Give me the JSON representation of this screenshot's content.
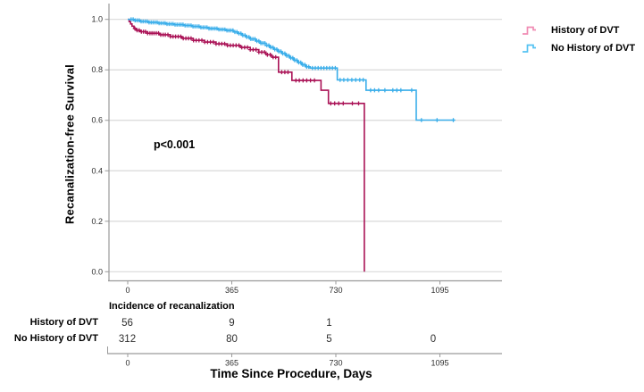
{
  "figure": {
    "ylabel": "Recanalization-free Survival",
    "xlabel": "Time Since Procedure, Days",
    "annotation_text": "p<0.001",
    "legend": {
      "position": "top-right",
      "items": [
        {
          "label": "History of DVT",
          "swatch_color": "#F08CB4",
          "swatch_icon": "step-line-icon"
        },
        {
          "label": "No History of DVT",
          "swatch_color": "#55C2F2",
          "swatch_icon": "step-line-icon"
        }
      ]
    }
  },
  "chart_data": {
    "type": "line",
    "subtype": "kaplan-meier-step",
    "title": "",
    "xlabel": "Time Since Procedure, Days",
    "ylabel": "Recanalization-free Survival",
    "xlim_days": [
      0,
      1315
    ],
    "ylim": [
      0.0,
      1.0
    ],
    "xticks": [
      0,
      365,
      730,
      1095
    ],
    "xtick_labels": [
      "0",
      "365",
      "730",
      "1095"
    ],
    "ytick_values": [
      0.0,
      0.2,
      0.4,
      0.6,
      0.8,
      1.0
    ],
    "ytick_labels": [
      "0.0",
      "0.2",
      "0.4",
      "0.6",
      "0.8",
      "1.0"
    ],
    "grid": "horizontal",
    "annotation": {
      "text": "p<0.001"
    },
    "colors": {
      "gridline": "#d9d9d9",
      "axis": "#9a9a9a",
      "tick_text": "#2e2e2e"
    },
    "series": [
      {
        "name": "History of DVT",
        "color": "#AA1256",
        "steps": [
          [
            0,
            1.0
          ],
          [
            5,
            0.991
          ],
          [
            10,
            0.982
          ],
          [
            15,
            0.973
          ],
          [
            22,
            0.964
          ],
          [
            30,
            0.957
          ],
          [
            45,
            0.951
          ],
          [
            70,
            0.945
          ],
          [
            110,
            0.939
          ],
          [
            150,
            0.932
          ],
          [
            190,
            0.925
          ],
          [
            230,
            0.917
          ],
          [
            270,
            0.91
          ],
          [
            310,
            0.903
          ],
          [
            350,
            0.897
          ],
          [
            395,
            0.889
          ],
          [
            430,
            0.88
          ],
          [
            460,
            0.87
          ],
          [
            485,
            0.86
          ],
          [
            505,
            0.85
          ],
          [
            529,
            0.791
          ],
          [
            576,
            0.758
          ],
          [
            678,
            0.719
          ],
          [
            704,
            0.667
          ],
          [
            830,
            0.0
          ]
        ],
        "censor_days": [
          25,
          33,
          40,
          48,
          55,
          62,
          70,
          78,
          85,
          92,
          100,
          108,
          116,
          124,
          132,
          141,
          150,
          159,
          168,
          177,
          186,
          195,
          204,
          213,
          222,
          231,
          240,
          250,
          260,
          270,
          280,
          290,
          300,
          310,
          320,
          330,
          340,
          350,
          360,
          370,
          380,
          390,
          400,
          410,
          420,
          430,
          440,
          450,
          460,
          470,
          480,
          490,
          500,
          510,
          519,
          540,
          551,
          562,
          590,
          602,
          615,
          628,
          641,
          655,
          712,
          726,
          740,
          756,
          788,
          810
        ]
      },
      {
        "name": "No History of DVT",
        "color": "#3AAEEA",
        "steps": [
          [
            0,
            1.0
          ],
          [
            20,
            0.996
          ],
          [
            45,
            0.992
          ],
          [
            75,
            0.988
          ],
          [
            105,
            0.985
          ],
          [
            135,
            0.982
          ],
          [
            165,
            0.979
          ],
          [
            195,
            0.976
          ],
          [
            225,
            0.972
          ],
          [
            255,
            0.968
          ],
          [
            285,
            0.964
          ],
          [
            315,
            0.96
          ],
          [
            345,
            0.956
          ],
          [
            370,
            0.95
          ],
          [
            385,
            0.944
          ],
          [
            400,
            0.937
          ],
          [
            415,
            0.93
          ],
          [
            430,
            0.922
          ],
          [
            448,
            0.914
          ],
          [
            465,
            0.906
          ],
          [
            482,
            0.897
          ],
          [
            498,
            0.889
          ],
          [
            512,
            0.881
          ],
          [
            526,
            0.873
          ],
          [
            540,
            0.865
          ],
          [
            554,
            0.856
          ],
          [
            568,
            0.847
          ],
          [
            582,
            0.838
          ],
          [
            596,
            0.829
          ],
          [
            610,
            0.82
          ],
          [
            625,
            0.812
          ],
          [
            640,
            0.807
          ],
          [
            735,
            0.76
          ],
          [
            836,
            0.719
          ],
          [
            1012,
            0.601
          ],
          [
            1147,
            0.601
          ]
        ],
        "censor_days": [
          12,
          19,
          26,
          33,
          40,
          47,
          54,
          61,
          68,
          75,
          82,
          89,
          96,
          103,
          110,
          117,
          124,
          131,
          138,
          145,
          152,
          159,
          166,
          173,
          180,
          187,
          194,
          201,
          208,
          215,
          222,
          229,
          236,
          243,
          250,
          257,
          264,
          271,
          278,
          285,
          292,
          299,
          306,
          313,
          320,
          327,
          334,
          341,
          348,
          355,
          362,
          369,
          376,
          383,
          390,
          397,
          404,
          411,
          418,
          425,
          432,
          439,
          446,
          453,
          460,
          467,
          474,
          481,
          488,
          495,
          502,
          509,
          516,
          523,
          530,
          537,
          544,
          551,
          558,
          565,
          572,
          579,
          586,
          593,
          600,
          607,
          614,
          621,
          628,
          635,
          648,
          658,
          668,
          678,
          688,
          698,
          708,
          718,
          728,
          745,
          758,
          772,
          786,
          800,
          814,
          826,
          852,
          866,
          880,
          902,
          930,
          944,
          958,
          996,
          1030,
          1085,
          1142
        ]
      }
    ],
    "risk_table": {
      "title": "Incidence of recanalization",
      "time_points": [
        0,
        365,
        730,
        1095
      ],
      "rows": [
        {
          "label": "History of DVT",
          "values": [
            "56",
            "9",
            "1",
            ""
          ]
        },
        {
          "label": "No History of DVT",
          "values": [
            "312",
            "80",
            "5",
            "0"
          ]
        }
      ]
    },
    "secondary_axis": {
      "tick_labels": [
        "0",
        "365",
        "730",
        "1095"
      ]
    }
  }
}
